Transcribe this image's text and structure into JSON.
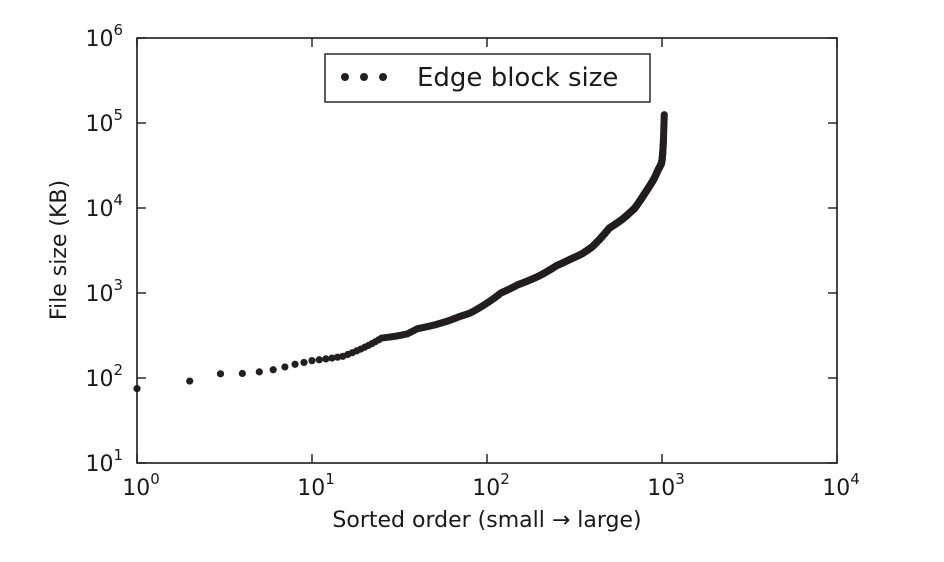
{
  "chart_data": {
    "type": "scatter",
    "title": "",
    "xlabel": "Sorted order (small → large)",
    "ylabel": "File size (KB)",
    "xscale": "log",
    "yscale": "log",
    "xlim": [
      1,
      10000
    ],
    "ylim": [
      10,
      1000000
    ],
    "x_ticks": [
      {
        "base": "10",
        "exp": "0"
      },
      {
        "base": "10",
        "exp": "1"
      },
      {
        "base": "10",
        "exp": "2"
      },
      {
        "base": "10",
        "exp": "3"
      },
      {
        "base": "10",
        "exp": "4"
      }
    ],
    "y_ticks": [
      {
        "base": "10",
        "exp": "1"
      },
      {
        "base": "10",
        "exp": "2"
      },
      {
        "base": "10",
        "exp": "3"
      },
      {
        "base": "10",
        "exp": "4"
      },
      {
        "base": "10",
        "exp": "5"
      },
      {
        "base": "10",
        "exp": "6"
      }
    ],
    "legend_position": "top-center",
    "grid": false,
    "marker_color": "#231f20",
    "series": [
      {
        "name": "Edge block size",
        "n_points": 1030,
        "anchors": [
          [
            1,
            75
          ],
          [
            2,
            92
          ],
          [
            3,
            112
          ],
          [
            4,
            113
          ],
          [
            5,
            118
          ],
          [
            6,
            125
          ],
          [
            7,
            135
          ],
          [
            8,
            145
          ],
          [
            10,
            160
          ],
          [
            15,
            180
          ],
          [
            20,
            230
          ],
          [
            25,
            295
          ],
          [
            30,
            310
          ],
          [
            35,
            330
          ],
          [
            40,
            380
          ],
          [
            50,
            420
          ],
          [
            60,
            470
          ],
          [
            70,
            530
          ],
          [
            80,
            580
          ],
          [
            100,
            760
          ],
          [
            120,
            1000
          ],
          [
            150,
            1250
          ],
          [
            200,
            1600
          ],
          [
            250,
            2100
          ],
          [
            300,
            2500
          ],
          [
            350,
            2900
          ],
          [
            400,
            3500
          ],
          [
            450,
            4500
          ],
          [
            500,
            5800
          ],
          [
            600,
            7500
          ],
          [
            700,
            10000
          ],
          [
            800,
            15000
          ],
          [
            900,
            22000
          ],
          [
            950,
            28000
          ],
          [
            990,
            33000
          ],
          [
            1000,
            36000
          ],
          [
            1010,
            45000
          ],
          [
            1020,
            65000
          ],
          [
            1025,
            90000
          ],
          [
            1030,
            125000
          ]
        ]
      }
    ]
  }
}
